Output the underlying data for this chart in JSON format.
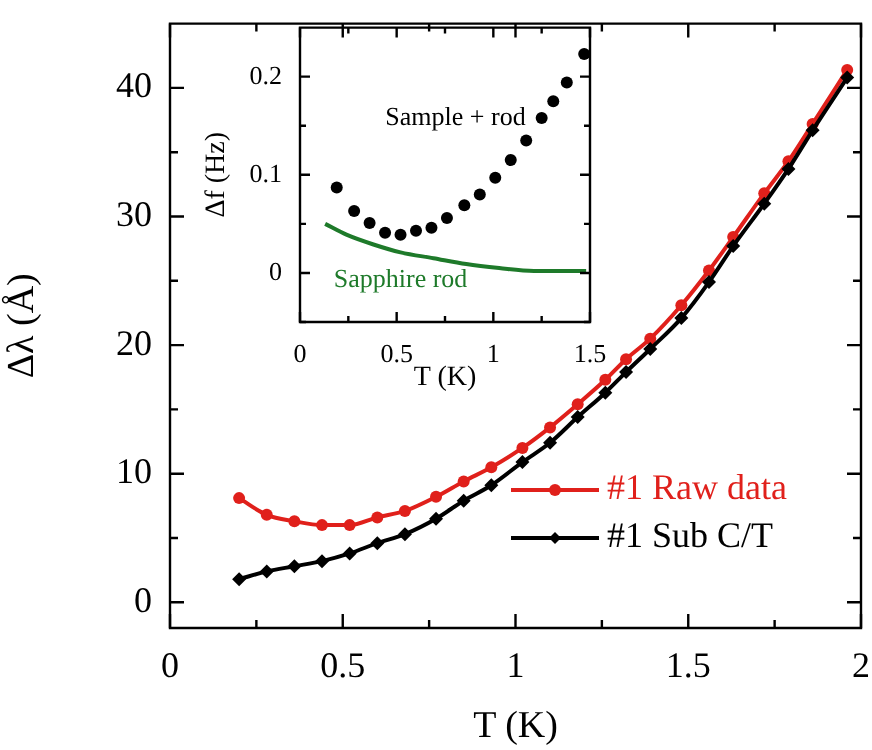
{
  "chart_data": [
    {
      "type": "line",
      "xlabel": "T (K)",
      "ylabel": "Δλ (Å)",
      "xlim": [
        0,
        2
      ],
      "ylim": [
        -2,
        45
      ],
      "xticks": [
        0,
        {
          "value": 0.25,
          "label": null
        },
        0.5,
        {
          "value": 0.75,
          "label": null
        },
        1,
        {
          "value": 1.25,
          "label": null
        },
        1.5,
        {
          "value": 1.75,
          "label": null
        },
        2
      ],
      "yticks": [
        0,
        {
          "value": 5,
          "label": null
        },
        10,
        {
          "value": 15,
          "label": null
        },
        20,
        {
          "value": 25,
          "label": null
        },
        30,
        {
          "value": 35,
          "label": null
        },
        40
      ],
      "legend": "bottom right",
      "grid": false,
      "series": [
        {
          "name": "#1 Raw data",
          "color": "#e0201b",
          "marker": "circle",
          "x": [
            0.2,
            0.28,
            0.36,
            0.44,
            0.52,
            0.6,
            0.68,
            0.77,
            0.85,
            0.93,
            1.02,
            1.1,
            1.18,
            1.26,
            1.32,
            1.39,
            1.48,
            1.56,
            1.63,
            1.72,
            1.79,
            1.86,
            1.96
          ],
          "values": [
            8.1,
            6.8,
            6.3,
            6.0,
            6.0,
            6.6,
            7.1,
            8.2,
            9.4,
            10.5,
            12.0,
            13.6,
            15.4,
            17.3,
            18.9,
            20.5,
            23.1,
            25.8,
            28.4,
            31.8,
            34.3,
            37.2,
            41.4
          ]
        },
        {
          "name": "#1 Sub C/T",
          "color": "#000000",
          "marker": "diamond",
          "x": [
            0.2,
            0.28,
            0.36,
            0.44,
            0.52,
            0.6,
            0.68,
            0.77,
            0.85,
            0.93,
            1.02,
            1.1,
            1.18,
            1.26,
            1.32,
            1.39,
            1.48,
            1.56,
            1.63,
            1.72,
            1.79,
            1.86,
            1.96
          ],
          "values": [
            1.8,
            2.4,
            2.8,
            3.2,
            3.8,
            4.6,
            5.3,
            6.5,
            7.9,
            9.1,
            10.9,
            12.4,
            14.4,
            16.3,
            17.9,
            19.7,
            22.1,
            24.9,
            27.7,
            31.0,
            33.7,
            36.7,
            40.8
          ]
        }
      ]
    },
    {
      "type": "scatter",
      "xlabel": "T (K)",
      "ylabel": "Δf (Hz)",
      "xlim": [
        0,
        1.5
      ],
      "ylim": [
        -0.05,
        0.25
      ],
      "xticks": [
        0,
        {
          "value": 0.25,
          "label": null
        },
        0.5,
        {
          "value": 0.75,
          "label": null
        },
        1,
        {
          "value": 1.25,
          "label": null
        },
        1.5
      ],
      "yticks": [
        {
          "value": -0.05,
          "label": null
        },
        0,
        {
          "value": 0.05,
          "label": null
        },
        0.1,
        {
          "value": 0.15,
          "label": null
        },
        0.2
      ],
      "legend": "right",
      "grid": false,
      "series": [
        {
          "name": "Sample + rod",
          "color": "#000000",
          "marker": "circle",
          "x": [
            0.19,
            0.28,
            0.36,
            0.44,
            0.52,
            0.6,
            0.68,
            0.76,
            0.85,
            0.93,
            1.01,
            1.09,
            1.17,
            1.25,
            1.31,
            1.38,
            1.47
          ],
          "values": [
            0.087,
            0.063,
            0.051,
            0.041,
            0.039,
            0.043,
            0.046,
            0.056,
            0.069,
            0.08,
            0.097,
            0.115,
            0.135,
            0.158,
            0.175,
            0.194,
            0.223
          ]
        },
        {
          "name": "Sapphire rod",
          "type": "line",
          "color": "#1e7a2a",
          "marker": "none",
          "x": [
            0.13,
            0.24,
            0.38,
            0.52,
            0.69,
            0.86,
            1.03,
            1.21,
            1.38,
            1.48
          ],
          "values": [
            0.05,
            0.039,
            0.029,
            0.021,
            0.015,
            0.009,
            0.005,
            0.002,
            0.002,
            0.002
          ]
        }
      ]
    }
  ]
}
